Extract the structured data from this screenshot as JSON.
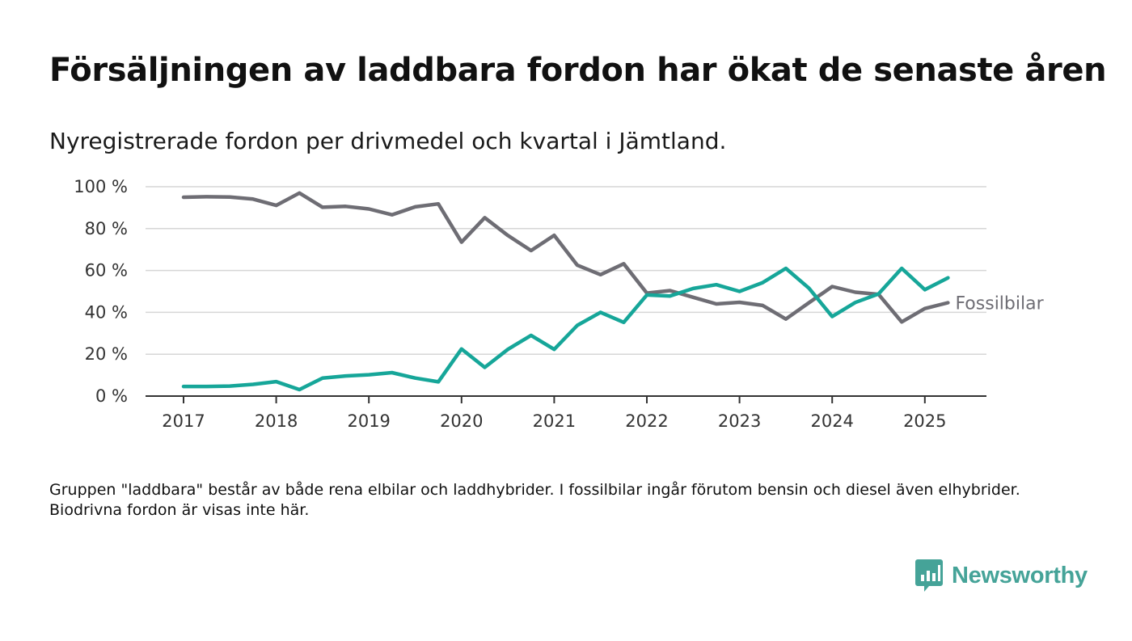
{
  "title": "Försäljningen av laddbara fordon har ökat de senaste åren",
  "subtitle": "Nyregistrerade fordon per drivmedel och kvartal i Jämtland.",
  "note": "Gruppen \"laddbara\" består av både rena elbilar och laddhybrider. I fossilbilar ingår förutom bensin och diesel även elhybrider. Biodrivna fordon är visas inte här.",
  "brand": {
    "name": "Newsworthy",
    "color": "#45a398",
    "icon": "newsworthy-logo-icon"
  },
  "chart_data": {
    "type": "line",
    "xlabel": "",
    "ylabel": "",
    "x_ticks": [
      "2017",
      "2018",
      "2019",
      "2020",
      "2021",
      "2022",
      "2023",
      "2024",
      "2025"
    ],
    "y_ticks": [
      "0 %",
      "20 %",
      "40 %",
      "60 %",
      "80 %",
      "100 %"
    ],
    "ylim": [
      0,
      100
    ],
    "grid": true,
    "x": [
      "2017 Q1",
      "2017 Q2",
      "2017 Q3",
      "2017 Q4",
      "2018 Q1",
      "2018 Q2",
      "2018 Q3",
      "2018 Q4",
      "2019 Q1",
      "2019 Q2",
      "2019 Q3",
      "2019 Q4",
      "2020 Q1",
      "2020 Q2",
      "2020 Q3",
      "2020 Q4",
      "2021 Q1",
      "2021 Q2",
      "2021 Q3",
      "2021 Q4",
      "2022 Q1",
      "2022 Q2",
      "2022 Q3",
      "2022 Q4",
      "2023 Q1",
      "2023 Q2",
      "2023 Q3",
      "2023 Q4",
      "2024 Q1",
      "2024 Q2",
      "2024 Q3",
      "2024 Q4",
      "2025 Q1",
      "2025 Q2"
    ],
    "series": [
      {
        "name": "Fossilbilar",
        "color": "#6e6d74",
        "values": [
          95.0,
          95.2,
          95.1,
          94.1,
          91.1,
          97.0,
          90.2,
          90.6,
          89.4,
          86.6,
          90.4,
          91.8,
          73.5,
          85.2,
          76.7,
          69.5,
          76.8,
          62.5,
          58.0,
          63.2,
          49.2,
          50.4,
          47.2,
          44.0,
          44.8,
          43.3,
          36.8,
          44.6,
          52.3,
          49.6,
          48.6,
          35.4,
          41.8,
          44.6
        ]
      },
      {
        "color": "#16a699",
        "values": [
          4.6,
          4.6,
          4.8,
          5.6,
          6.9,
          3.1,
          8.6,
          9.6,
          10.2,
          11.2,
          8.6,
          6.8,
          22.5,
          13.7,
          22.3,
          29.0,
          22.3,
          33.8,
          40.0,
          35.2,
          48.3,
          47.8,
          51.4,
          53.2,
          50.0,
          54.2,
          61.0,
          51.5,
          38.0,
          44.7,
          48.8,
          61.0,
          50.8,
          56.5
        ]
      }
    ]
  }
}
